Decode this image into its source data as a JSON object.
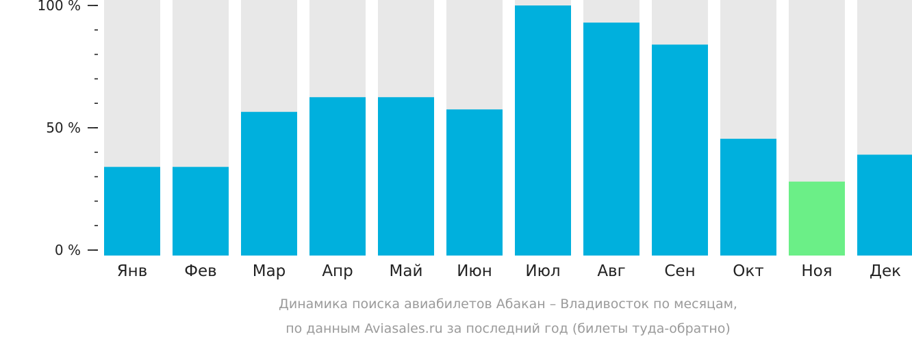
{
  "chart_data": {
    "type": "bar",
    "categories": [
      "Янв",
      "Фев",
      "Мар",
      "Апр",
      "Май",
      "Июн",
      "Июл",
      "Авг",
      "Сен",
      "Окт",
      "Ноя",
      "Дек"
    ],
    "values": [
      34,
      34,
      56.5,
      62.5,
      62.5,
      57.5,
      100,
      93,
      84,
      45.5,
      28,
      39
    ],
    "ylim": [
      0,
      100
    ],
    "yticks": [
      {
        "value": 0,
        "label": "0 %"
      },
      {
        "value": 50,
        "label": "50 %"
      },
      {
        "value": 100,
        "label": "100 %"
      }
    ],
    "minor_tick_step": 10,
    "highlight_index": 10,
    "colors": {
      "bar": "#00b0dd",
      "highlight": "#6bef87",
      "background_bar": "#e8e8e8",
      "axis": "#222222"
    },
    "caption": [
      "Динамика поиска авиабилетов Абакан – Владивосток по месяцам,",
      "по данным Aviasales.ru за последний год (билеты туда-обратно)"
    ]
  }
}
